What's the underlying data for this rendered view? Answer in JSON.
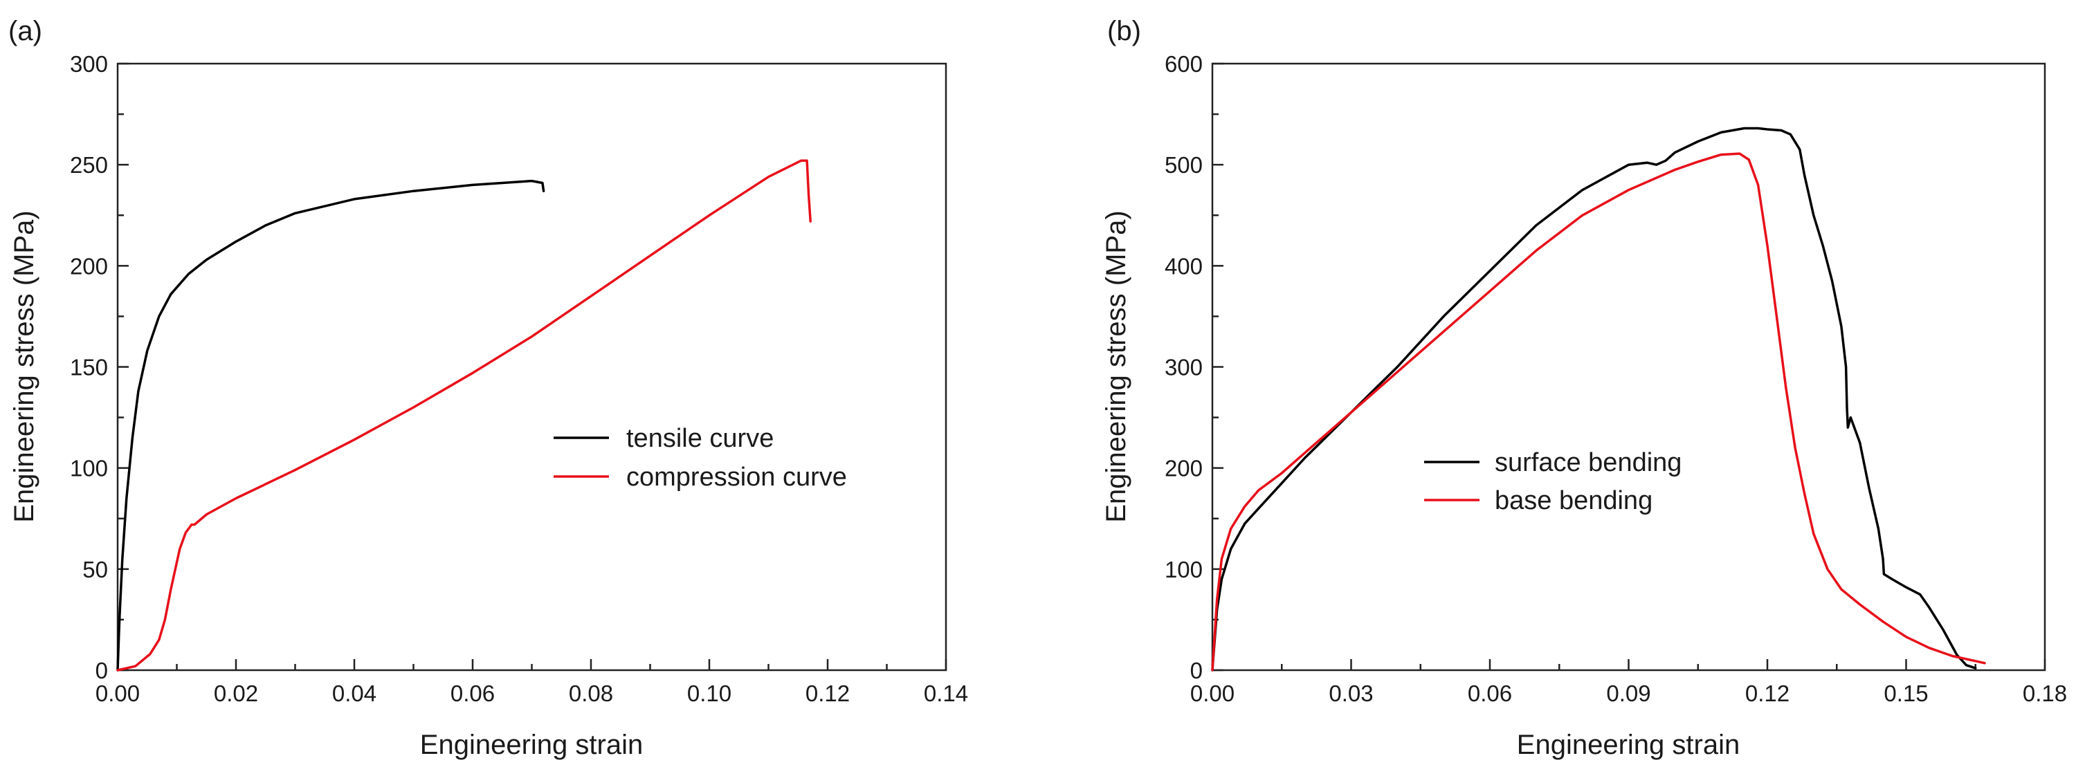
{
  "chart_data": [
    {
      "panel_label": "(a)",
      "type": "line",
      "xlabel": "Engineering strain",
      "ylabel": "Engineering stress (MPa)",
      "xlim": [
        0.0,
        0.14
      ],
      "ylim": [
        0,
        300
      ],
      "xticks": [
        "0.00",
        "0.02",
        "0.04",
        "0.06",
        "0.08",
        "0.10",
        "0.12",
        "0.14"
      ],
      "yticks": [
        "0",
        "50",
        "100",
        "150",
        "200",
        "250",
        "300"
      ],
      "legend_position": "center-right",
      "series": [
        {
          "name": "tensile curve",
          "color": "#000000",
          "x": [
            0.0,
            0.0003,
            0.0008,
            0.0015,
            0.0025,
            0.0035,
            0.005,
            0.007,
            0.009,
            0.012,
            0.015,
            0.02,
            0.025,
            0.03,
            0.04,
            0.05,
            0.06,
            0.07,
            0.0718,
            0.072
          ],
          "y": [
            0,
            25,
            55,
            85,
            115,
            138,
            158,
            175,
            186,
            196,
            203,
            212,
            220,
            226,
            233,
            237,
            240,
            242,
            241,
            237
          ]
        },
        {
          "name": "compression curve",
          "color": "#e8101a",
          "x": [
            0.0,
            0.003,
            0.0055,
            0.007,
            0.008,
            0.009,
            0.0105,
            0.0115,
            0.0125,
            0.013,
            0.015,
            0.02,
            0.03,
            0.04,
            0.05,
            0.06,
            0.07,
            0.08,
            0.09,
            0.1,
            0.11,
            0.1155,
            0.1165,
            0.1168,
            0.1171
          ],
          "y": [
            0,
            2,
            8,
            15,
            25,
            40,
            60,
            68,
            72,
            72,
            77,
            85,
            99,
            114,
            130,
            147,
            165,
            185,
            205,
            225,
            244,
            252,
            252,
            235,
            222
          ]
        }
      ]
    },
    {
      "panel_label": "(b)",
      "type": "line",
      "xlabel": "Engineering strain",
      "ylabel": "Engineering stress (MPa)",
      "xlim": [
        0.0,
        0.18
      ],
      "ylim": [
        0,
        600
      ],
      "xticks": [
        "0.00",
        "0.03",
        "0.06",
        "0.09",
        "0.12",
        "0.15",
        "0.18"
      ],
      "yticks": [
        "0",
        "100",
        "200",
        "300",
        "400",
        "500",
        "600"
      ],
      "legend_position": "center-left",
      "series": [
        {
          "name": "surface bending",
          "color": "#000000",
          "x": [
            0.0,
            0.001,
            0.002,
            0.004,
            0.007,
            0.01,
            0.015,
            0.02,
            0.03,
            0.04,
            0.05,
            0.06,
            0.07,
            0.08,
            0.09,
            0.094,
            0.096,
            0.098,
            0.1,
            0.105,
            0.11,
            0.115,
            0.118,
            0.12,
            0.123,
            0.125,
            0.127,
            0.128,
            0.13,
            0.132,
            0.134,
            0.136,
            0.137,
            0.1372,
            0.1374,
            0.138,
            0.14,
            0.142,
            0.144,
            0.145,
            0.1452,
            0.147,
            0.15,
            0.153,
            0.155,
            0.158,
            0.161,
            0.163,
            0.165
          ],
          "y": [
            0,
            60,
            90,
            120,
            145,
            160,
            185,
            210,
            255,
            300,
            350,
            395,
            440,
            475,
            500,
            502,
            500,
            504,
            512,
            523,
            532,
            536,
            536,
            535,
            534,
            530,
            515,
            490,
            450,
            420,
            385,
            340,
            300,
            260,
            240,
            250,
            225,
            180,
            140,
            110,
            95,
            90,
            82,
            75,
            62,
            40,
            15,
            5,
            2
          ]
        },
        {
          "name": "base bending",
          "color": "#e8101a",
          "x": [
            0.0,
            0.001,
            0.002,
            0.004,
            0.007,
            0.01,
            0.015,
            0.02,
            0.03,
            0.04,
            0.05,
            0.06,
            0.07,
            0.08,
            0.09,
            0.1,
            0.105,
            0.11,
            0.114,
            0.116,
            0.118,
            0.12,
            0.122,
            0.124,
            0.126,
            0.128,
            0.13,
            0.133,
            0.136,
            0.14,
            0.145,
            0.15,
            0.155,
            0.16,
            0.165,
            0.167
          ],
          "y": [
            0,
            70,
            110,
            140,
            162,
            178,
            195,
            215,
            255,
            295,
            335,
            375,
            415,
            450,
            475,
            495,
            503,
            510,
            511,
            505,
            480,
            420,
            350,
            280,
            220,
            175,
            135,
            100,
            80,
            65,
            48,
            33,
            22,
            14,
            9,
            7
          ]
        }
      ]
    }
  ]
}
